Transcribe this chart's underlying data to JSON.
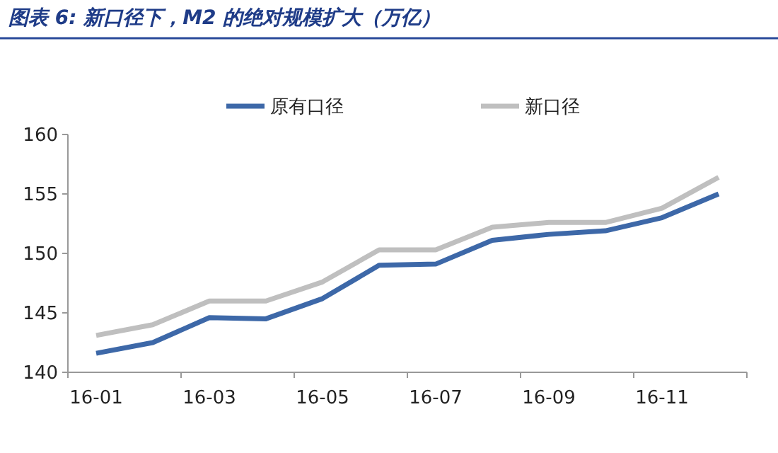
{
  "chart_data": {
    "type": "line",
    "title": "图表 6: 新口径下，M2 的绝对规模扩大（万亿）",
    "categories": [
      "16-01",
      null,
      "16-03",
      null,
      "16-05",
      null,
      "16-07",
      null,
      "16-09",
      null,
      "16-11",
      null
    ],
    "series": [
      {
        "name": "原有口径",
        "color": "#3d68a8",
        "values": [
          141.6,
          142.5,
          144.6,
          144.5,
          146.2,
          149.0,
          149.1,
          151.1,
          151.6,
          151.9,
          153.0,
          155.0
        ]
      },
      {
        "name": "新口径",
        "color": "#bfbfbf",
        "values": [
          143.1,
          144.0,
          146.0,
          146.0,
          147.6,
          150.3,
          150.3,
          152.2,
          152.6,
          152.6,
          153.8,
          156.4
        ]
      }
    ],
    "ylim": [
      140,
      160
    ],
    "yticks": [
      140,
      145,
      150,
      155,
      160
    ],
    "grid": false,
    "legend": "top",
    "line_style": "solid",
    "marker": "none"
  }
}
